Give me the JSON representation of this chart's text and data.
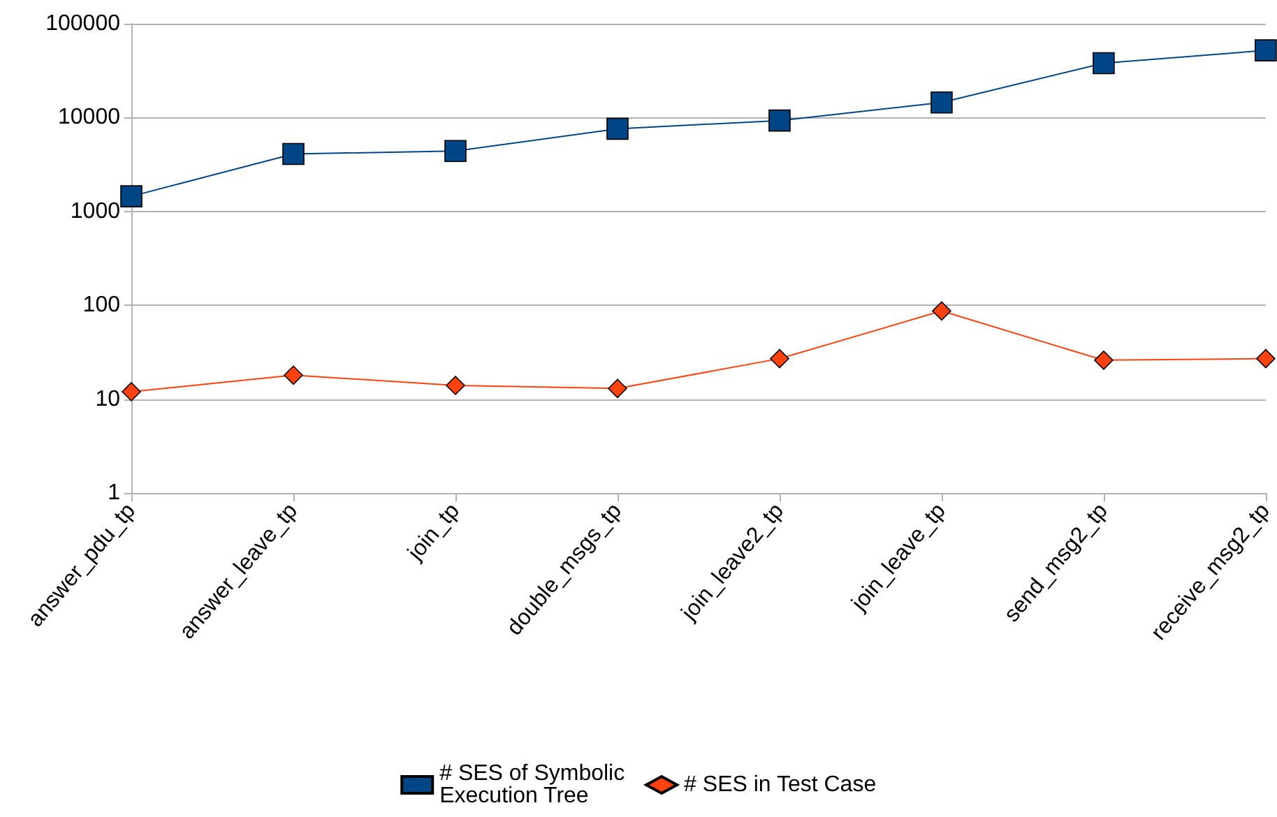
{
  "chart_data": {
    "type": "line",
    "log": true,
    "grid": "y",
    "legend": "bottom",
    "line_style": "solid",
    "categories": [
      "answer_pdu_tp",
      "answer_leave_tp",
      "join_tp",
      "double_msgs_tp",
      "join_leave2_tp",
      "join_leave_tp",
      "send_msg2_tp",
      "receive_msg2_tp"
    ],
    "ylim": [
      1,
      100000
    ],
    "yticks": [
      1,
      10,
      100,
      1000,
      10000,
      100000
    ],
    "series": [
      {
        "name": "# SES of Symbolic Execution Tree",
        "color": "#004586",
        "marker": "square",
        "values": [
          1450,
          4100,
          4400,
          7600,
          9300,
          14500,
          38000,
          52000
        ]
      },
      {
        "name": "# SES in Test Case",
        "color": "#ff420e",
        "marker": "diamond",
        "values": [
          12,
          18,
          14,
          13,
          27,
          87,
          26,
          27
        ]
      }
    ]
  }
}
